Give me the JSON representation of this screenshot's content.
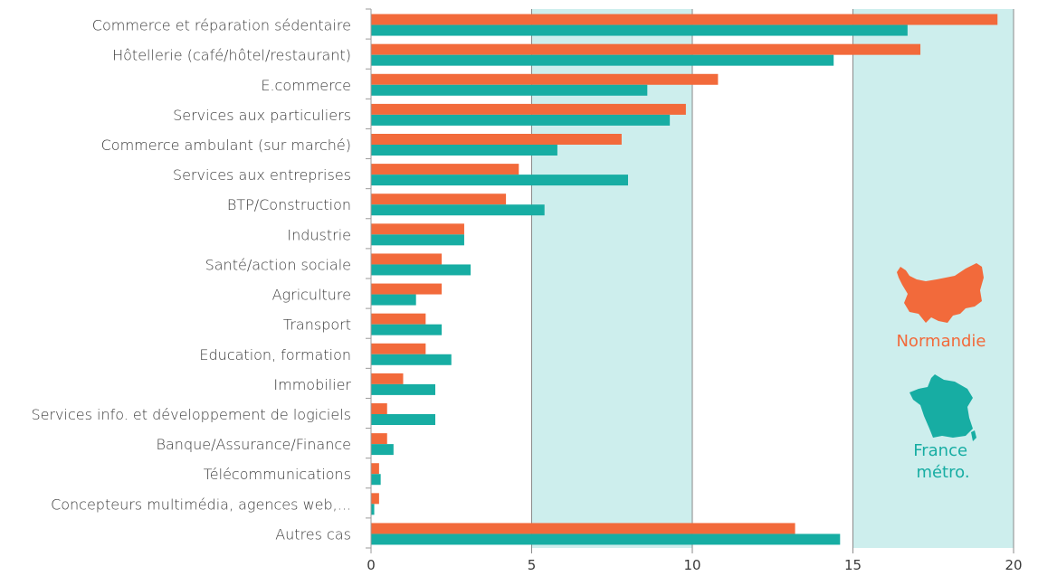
{
  "chart_data": {
    "type": "bar",
    "orientation": "horizontal",
    "categories": [
      "Commerce et réparation sédentaire",
      "Hôtellerie (café/hôtel/restaurant)",
      "E.commerce",
      "Services aux particuliers",
      "Commerce ambulant (sur marché)",
      "Services aux entreprises",
      "BTP/Construction",
      "Industrie",
      "Santé/action sociale",
      "Agriculture",
      "Transport",
      "Education, formation",
      "Immobilier",
      "Services info. et développement de logiciels",
      "Banque/Assurance/Finance",
      "Télécommunications",
      "Concepteurs multimédia, agences web,...",
      "Autres cas"
    ],
    "series": [
      {
        "name": "Normandie",
        "color": "#f26a3b",
        "values": [
          19.5,
          17.1,
          10.8,
          9.8,
          7.8,
          4.6,
          4.2,
          2.9,
          2.2,
          2.2,
          1.7,
          1.7,
          1.0,
          0.5,
          0.5,
          0.25,
          0.25,
          13.2
        ]
      },
      {
        "name": "France métro.",
        "color": "#17ada3",
        "values": [
          16.7,
          14.4,
          8.6,
          9.3,
          5.8,
          8.0,
          5.4,
          2.9,
          3.1,
          1.4,
          2.2,
          2.5,
          2.0,
          2.0,
          0.7,
          0.3,
          0.1,
          14.6
        ]
      }
    ],
    "xlim": [
      0,
      20
    ],
    "x_ticks": [
      "0",
      "5",
      "10",
      "15",
      "20"
    ],
    "shaded_bands": [
      [
        5,
        10
      ],
      [
        15,
        20
      ]
    ],
    "band_color": "#cdeeed",
    "legend_placement": "right",
    "title": "",
    "xlabel": "",
    "ylabel": ""
  },
  "legend": {
    "normandie_icon": "normandie-map-icon",
    "france_icon": "france-map-icon"
  }
}
